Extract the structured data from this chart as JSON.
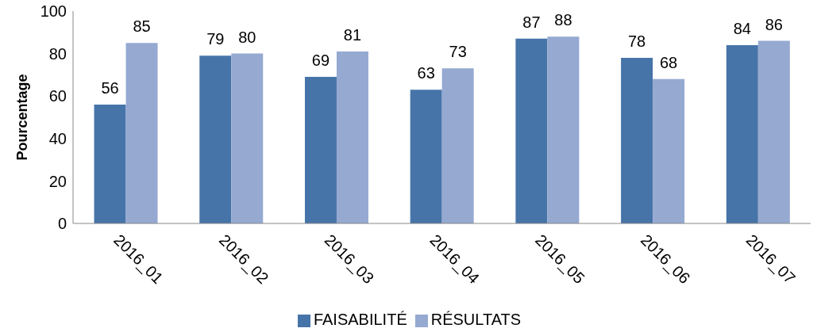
{
  "chart_data": {
    "type": "bar",
    "ylabel": "Pourcentage",
    "categories": [
      "2016_01",
      "2016_02",
      "2016_03",
      "2016_04",
      "2016_05",
      "2016_06",
      "2016_07"
    ],
    "series": [
      {
        "name": "FAISABILITÉ",
        "color": "#4674a8",
        "values": [
          56,
          79,
          69,
          63,
          87,
          78,
          84
        ]
      },
      {
        "name": "RÉSULTATS",
        "color": "#95a9d1",
        "values": [
          85,
          80,
          81,
          73,
          88,
          68,
          86
        ]
      }
    ],
    "ylim": [
      0,
      100
    ],
    "yticks": [
      0,
      20,
      40,
      60,
      80,
      100
    ],
    "grid": false,
    "legend": "bottom",
    "data_labels": true
  }
}
